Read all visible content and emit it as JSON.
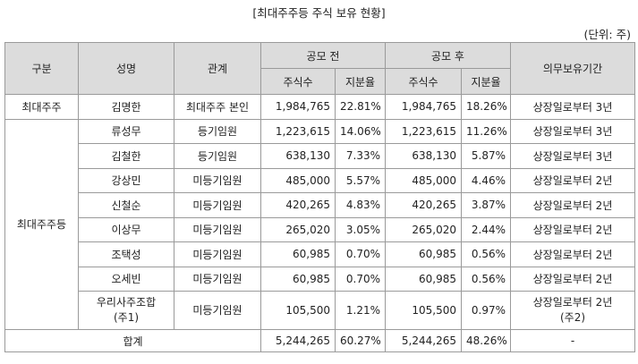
{
  "title": "[최대주주등 주식 보유 현황]",
  "unit": "(단위: 주)",
  "header": {
    "category": "구분",
    "name": "성명",
    "relation": "관계",
    "before": "공모 전",
    "after": "공모 후",
    "lockup": "의무보유기간",
    "shares": "주식수",
    "ratio": "지분율"
  },
  "groups": {
    "largest": "최대주주",
    "related": "최대주주등"
  },
  "rows": [
    {
      "name": "김명한",
      "relation": "최대주주 본인",
      "before_shares": "1,984,765",
      "before_ratio": "22.81%",
      "after_shares": "1,984,765",
      "after_ratio": "18.26%",
      "lockup": "상장일로부터 3년"
    },
    {
      "name": "류성무",
      "relation": "등기임원",
      "before_shares": "1,223,615",
      "before_ratio": "14.06%",
      "after_shares": "1,223,615",
      "after_ratio": "11.26%",
      "lockup": "상장일로부터 3년"
    },
    {
      "name": "김철한",
      "relation": "등기임원",
      "before_shares": "638,130",
      "before_ratio": "7.33%",
      "after_shares": "638,130",
      "after_ratio": "5.87%",
      "lockup": "상장일로부터 3년"
    },
    {
      "name": "강상민",
      "relation": "미등기임원",
      "before_shares": "485,000",
      "before_ratio": "5.57%",
      "after_shares": "485,000",
      "after_ratio": "4.46%",
      "lockup": "상장일로부터 2년"
    },
    {
      "name": "신철순",
      "relation": "미등기임원",
      "before_shares": "420,265",
      "before_ratio": "4.83%",
      "after_shares": "420,265",
      "after_ratio": "3.87%",
      "lockup": "상장일로부터 2년"
    },
    {
      "name": "이상무",
      "relation": "미등기임원",
      "before_shares": "265,020",
      "before_ratio": "3.05%",
      "after_shares": "265,020",
      "after_ratio": "2.44%",
      "lockup": "상장일로부터 2년"
    },
    {
      "name": "조택성",
      "relation": "미등기임원",
      "before_shares": "60,985",
      "before_ratio": "0.70%",
      "after_shares": "60,985",
      "after_ratio": "0.56%",
      "lockup": "상장일로부터 2년"
    },
    {
      "name": "오세빈",
      "relation": "미등기임원",
      "before_shares": "60,985",
      "before_ratio": "0.70%",
      "after_shares": "60,985",
      "after_ratio": "0.56%",
      "lockup": "상장일로부터 2년"
    },
    {
      "name": "우리사주조합",
      "name_note": "(주1)",
      "relation": "미등기임원",
      "before_shares": "105,500",
      "before_ratio": "1.21%",
      "after_shares": "105,500",
      "after_ratio": "0.97%",
      "lockup": "상장일로부터 2년",
      "lockup_note": "(주2)"
    }
  ],
  "total": {
    "label": "합계",
    "before_shares": "5,244,265",
    "before_ratio": "60.27%",
    "after_shares": "5,244,265",
    "after_ratio": "48.26%",
    "lockup": "-"
  }
}
